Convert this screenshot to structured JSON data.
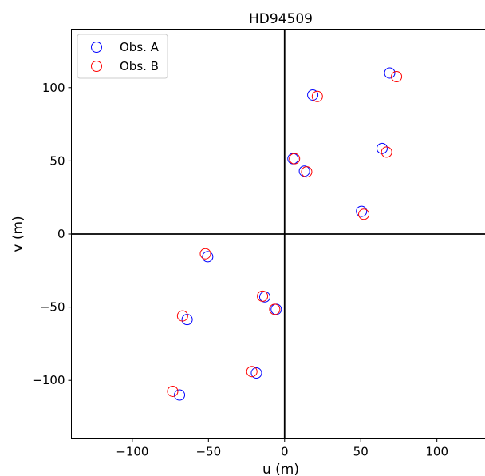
{
  "chart_data": {
    "type": "scatter",
    "title": "HD94509",
    "xlabel": "u (m)",
    "ylabel": "v (m)",
    "xlim": [
      -140,
      135
    ],
    "ylim": [
      -140,
      140
    ],
    "xticks": [
      -100,
      -50,
      0,
      50,
      100
    ],
    "yticks": [
      -100,
      -50,
      0,
      50,
      100
    ],
    "xtick_labels": [
      "−100",
      "−50",
      "0",
      "50",
      "100"
    ],
    "ytick_labels": [
      "−100",
      "−50",
      "0",
      "50",
      "100"
    ],
    "grid": false,
    "axis_lines_at_zero": true,
    "marker": "open-circle",
    "legend_position": "top-left",
    "series": [
      {
        "name": "Obs. A",
        "color": "#0000ff",
        "points": [
          [
            69,
            110
          ],
          [
            18.5,
            95
          ],
          [
            64,
            58.5
          ],
          [
            5.5,
            51.5
          ],
          [
            13,
            43
          ],
          [
            50.5,
            15.5
          ],
          [
            -50.5,
            -15.5
          ],
          [
            -13,
            -43
          ],
          [
            -5.5,
            -51.5
          ],
          [
            -64,
            -58.5
          ],
          [
            -18.5,
            -95
          ],
          [
            -69,
            -110
          ]
        ]
      },
      {
        "name": "Obs. B",
        "color": "#ff0000",
        "points": [
          [
            73.5,
            107.5
          ],
          [
            21.5,
            94
          ],
          [
            67,
            56
          ],
          [
            6.5,
            51.5
          ],
          [
            14.5,
            42.5
          ],
          [
            52,
            13.5
          ],
          [
            -52,
            -13.5
          ],
          [
            -14.5,
            -42.5
          ],
          [
            -6.5,
            -51.5
          ],
          [
            -67,
            -56
          ],
          [
            -21.5,
            -94
          ],
          [
            -73.5,
            -107.5
          ]
        ]
      }
    ]
  }
}
